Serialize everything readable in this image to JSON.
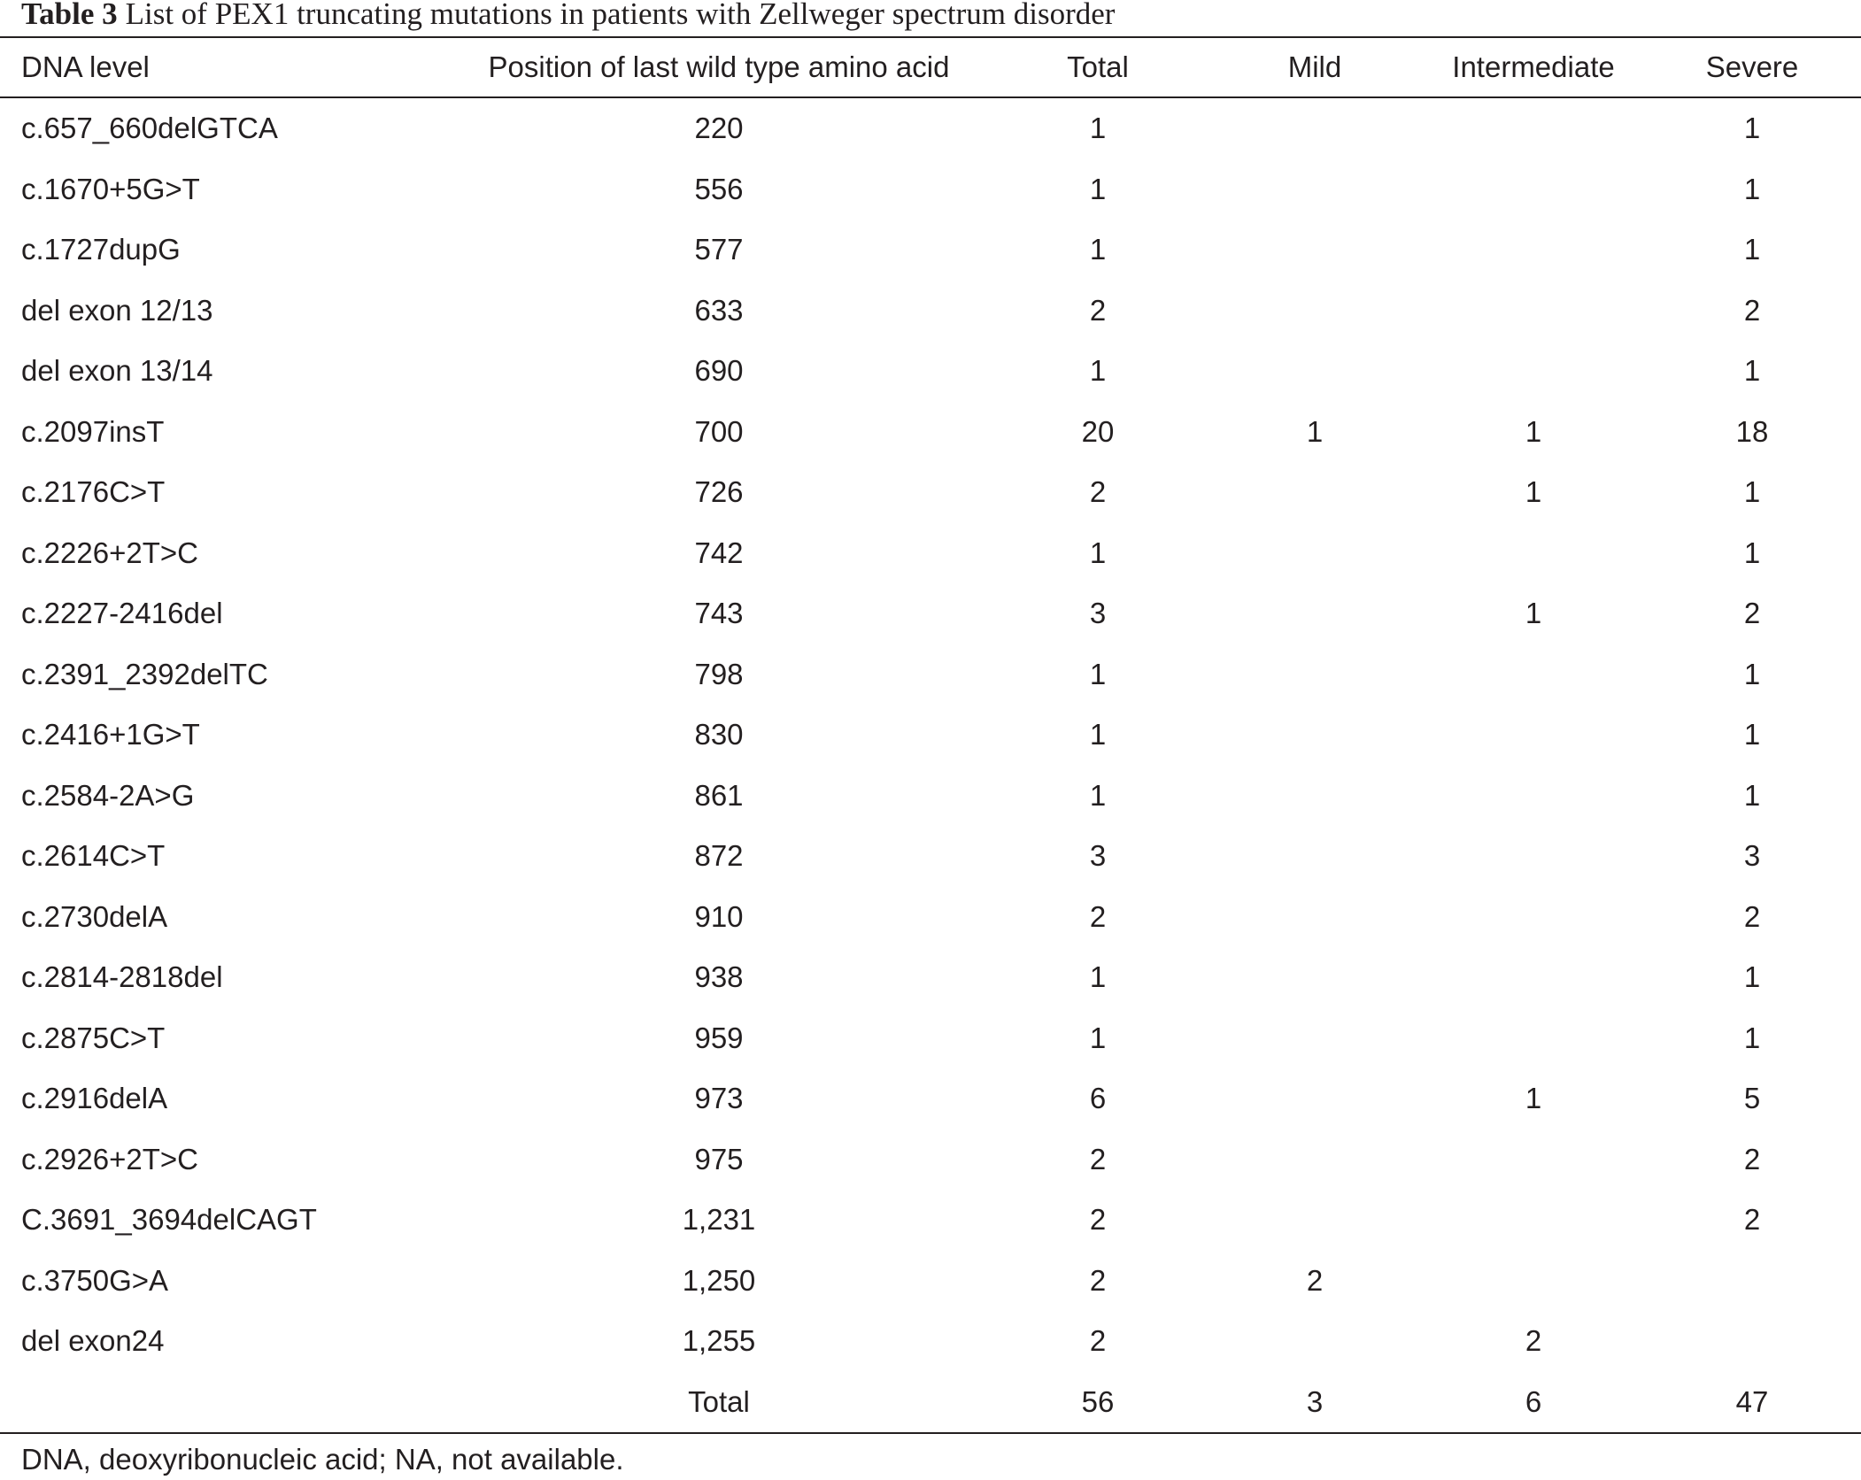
{
  "caption": {
    "label": "Table 3",
    "text": "List of PEX1 truncating mutations in patients with Zellweger spectrum disorder"
  },
  "table": {
    "columns": [
      "DNA level",
      "Position of last wild type amino acid",
      "Total",
      "Mild",
      "Intermediate",
      "Severe"
    ],
    "rows": [
      {
        "dna": "c.657_660delGTCA",
        "position": "220",
        "total": "1",
        "severe": "1"
      },
      {
        "dna": "c.1670+5G>T",
        "position": "556",
        "total": "1",
        "severe": "1"
      },
      {
        "dna": "c.1727dupG",
        "position": "577",
        "total": "1",
        "severe": "1"
      },
      {
        "dna": "del exon 12/13",
        "position": "633",
        "total": "2",
        "severe": "2"
      },
      {
        "dna": "del exon 13/14",
        "position": "690",
        "total": "1",
        "severe": "1"
      },
      {
        "dna": "c.2097insT",
        "position": "700",
        "total": "20",
        "mild": "1",
        "intermediate": "1",
        "severe": "18"
      },
      {
        "dna": "c.2176C>T",
        "position": "726",
        "total": "2",
        "intermediate": "1",
        "severe": "1"
      },
      {
        "dna": "c.2226+2T>C",
        "position": "742",
        "total": "1",
        "severe": "1"
      },
      {
        "dna": "c.2227-2416del",
        "position": "743",
        "total": "3",
        "intermediate": "1",
        "severe": "2"
      },
      {
        "dna": "c.2391_2392delTC",
        "position": "798",
        "total": "1",
        "severe": "1"
      },
      {
        "dna": "c.2416+1G>T",
        "position": "830",
        "total": "1",
        "severe": "1"
      },
      {
        "dna": "c.2584-2A>G",
        "position": "861",
        "total": "1",
        "severe": "1"
      },
      {
        "dna": "c.2614C>T",
        "position": "872",
        "total": "3",
        "severe": "3"
      },
      {
        "dna": "c.2730delA",
        "position": "910",
        "total": "2",
        "severe": "2"
      },
      {
        "dna": "c.2814-2818del",
        "position": "938",
        "total": "1",
        "severe": "1"
      },
      {
        "dna": "c.2875C>T",
        "position": "959",
        "total": "1",
        "severe": "1"
      },
      {
        "dna": "c.2916delA",
        "position": "973",
        "total": "6",
        "intermediate": "1",
        "severe": "5"
      },
      {
        "dna": "c.2926+2T>C",
        "position": "975",
        "total": "2",
        "severe": "2"
      },
      {
        "dna": "C.3691_3694delCAGT",
        "position": "1,231",
        "total": "2",
        "severe": "2"
      },
      {
        "dna": "c.3750G>A",
        "position": "1,250",
        "total": "2",
        "mild": "2"
      },
      {
        "dna": "del exon24",
        "position": "1,255",
        "total": "2",
        "intermediate": "2"
      }
    ],
    "total_row": {
      "label": "Total",
      "total": "56",
      "mild": "3",
      "intermediate": "6",
      "severe": "47"
    }
  },
  "footnote": "DNA, deoxyribonucleic acid; NA, not available."
}
